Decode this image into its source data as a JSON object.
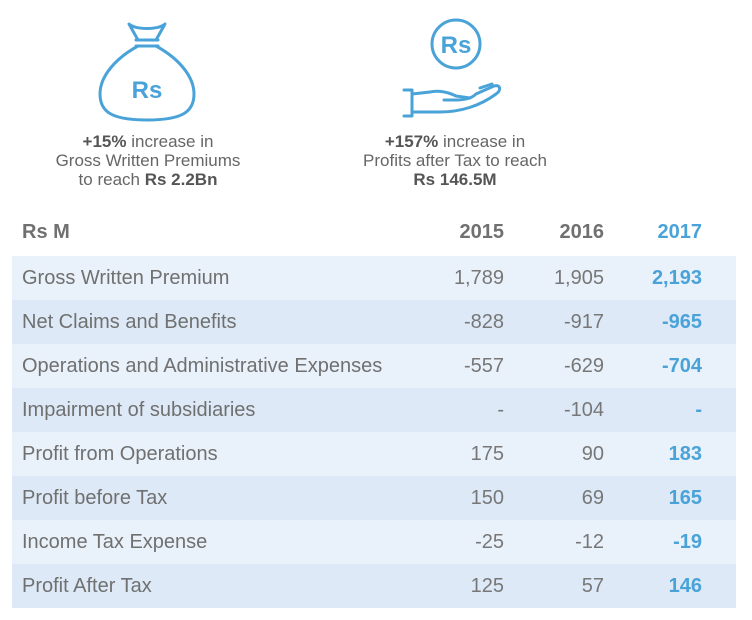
{
  "icons": {
    "bag": {
      "name": "money-bag-icon",
      "symbol": "Rs"
    },
    "hand": {
      "name": "hand-coin-icon",
      "symbol": "Rs"
    }
  },
  "highlights": [
    {
      "pct": "+15%",
      "line1_rest": " increase in",
      "line2": "Gross Written Premiums",
      "line3_pre": "to reach ",
      "line3_bold": "Rs 2.2Bn"
    },
    {
      "pct": "+157%",
      "line1_rest": " increase in",
      "line2": "Profits after Tax to reach",
      "line3_bold": "Rs 146.5M"
    }
  ],
  "table": {
    "unit": "Rs M",
    "years": [
      "2015",
      "2016",
      "2017"
    ],
    "rows": [
      {
        "label": "Gross Written Premium",
        "values": [
          "1,789",
          "1,905",
          "2,193"
        ]
      },
      {
        "label": "Net Claims and Benefits",
        "values": [
          "-828",
          "-917",
          "-965"
        ]
      },
      {
        "label": "Operations and Administrative Expenses",
        "values": [
          "-557",
          "-629",
          "-704"
        ]
      },
      {
        "label": "Impairment of subsidiaries",
        "values": [
          "-",
          "-104",
          "-"
        ]
      },
      {
        "label": "Profit from Operations",
        "values": [
          "175",
          "90",
          "183"
        ]
      },
      {
        "label": "Profit before Tax",
        "values": [
          "150",
          "69",
          "165"
        ]
      },
      {
        "label": "Income Tax Expense",
        "values": [
          "-25",
          "-12",
          "-19"
        ]
      },
      {
        "label": "Profit After Tax",
        "values": [
          "125",
          "57",
          "146"
        ]
      }
    ]
  },
  "colors": {
    "accent": "#4aa3d8",
    "row_light": "#e9f1fa",
    "row_dark": "#dde9f6",
    "text": "#707070"
  }
}
